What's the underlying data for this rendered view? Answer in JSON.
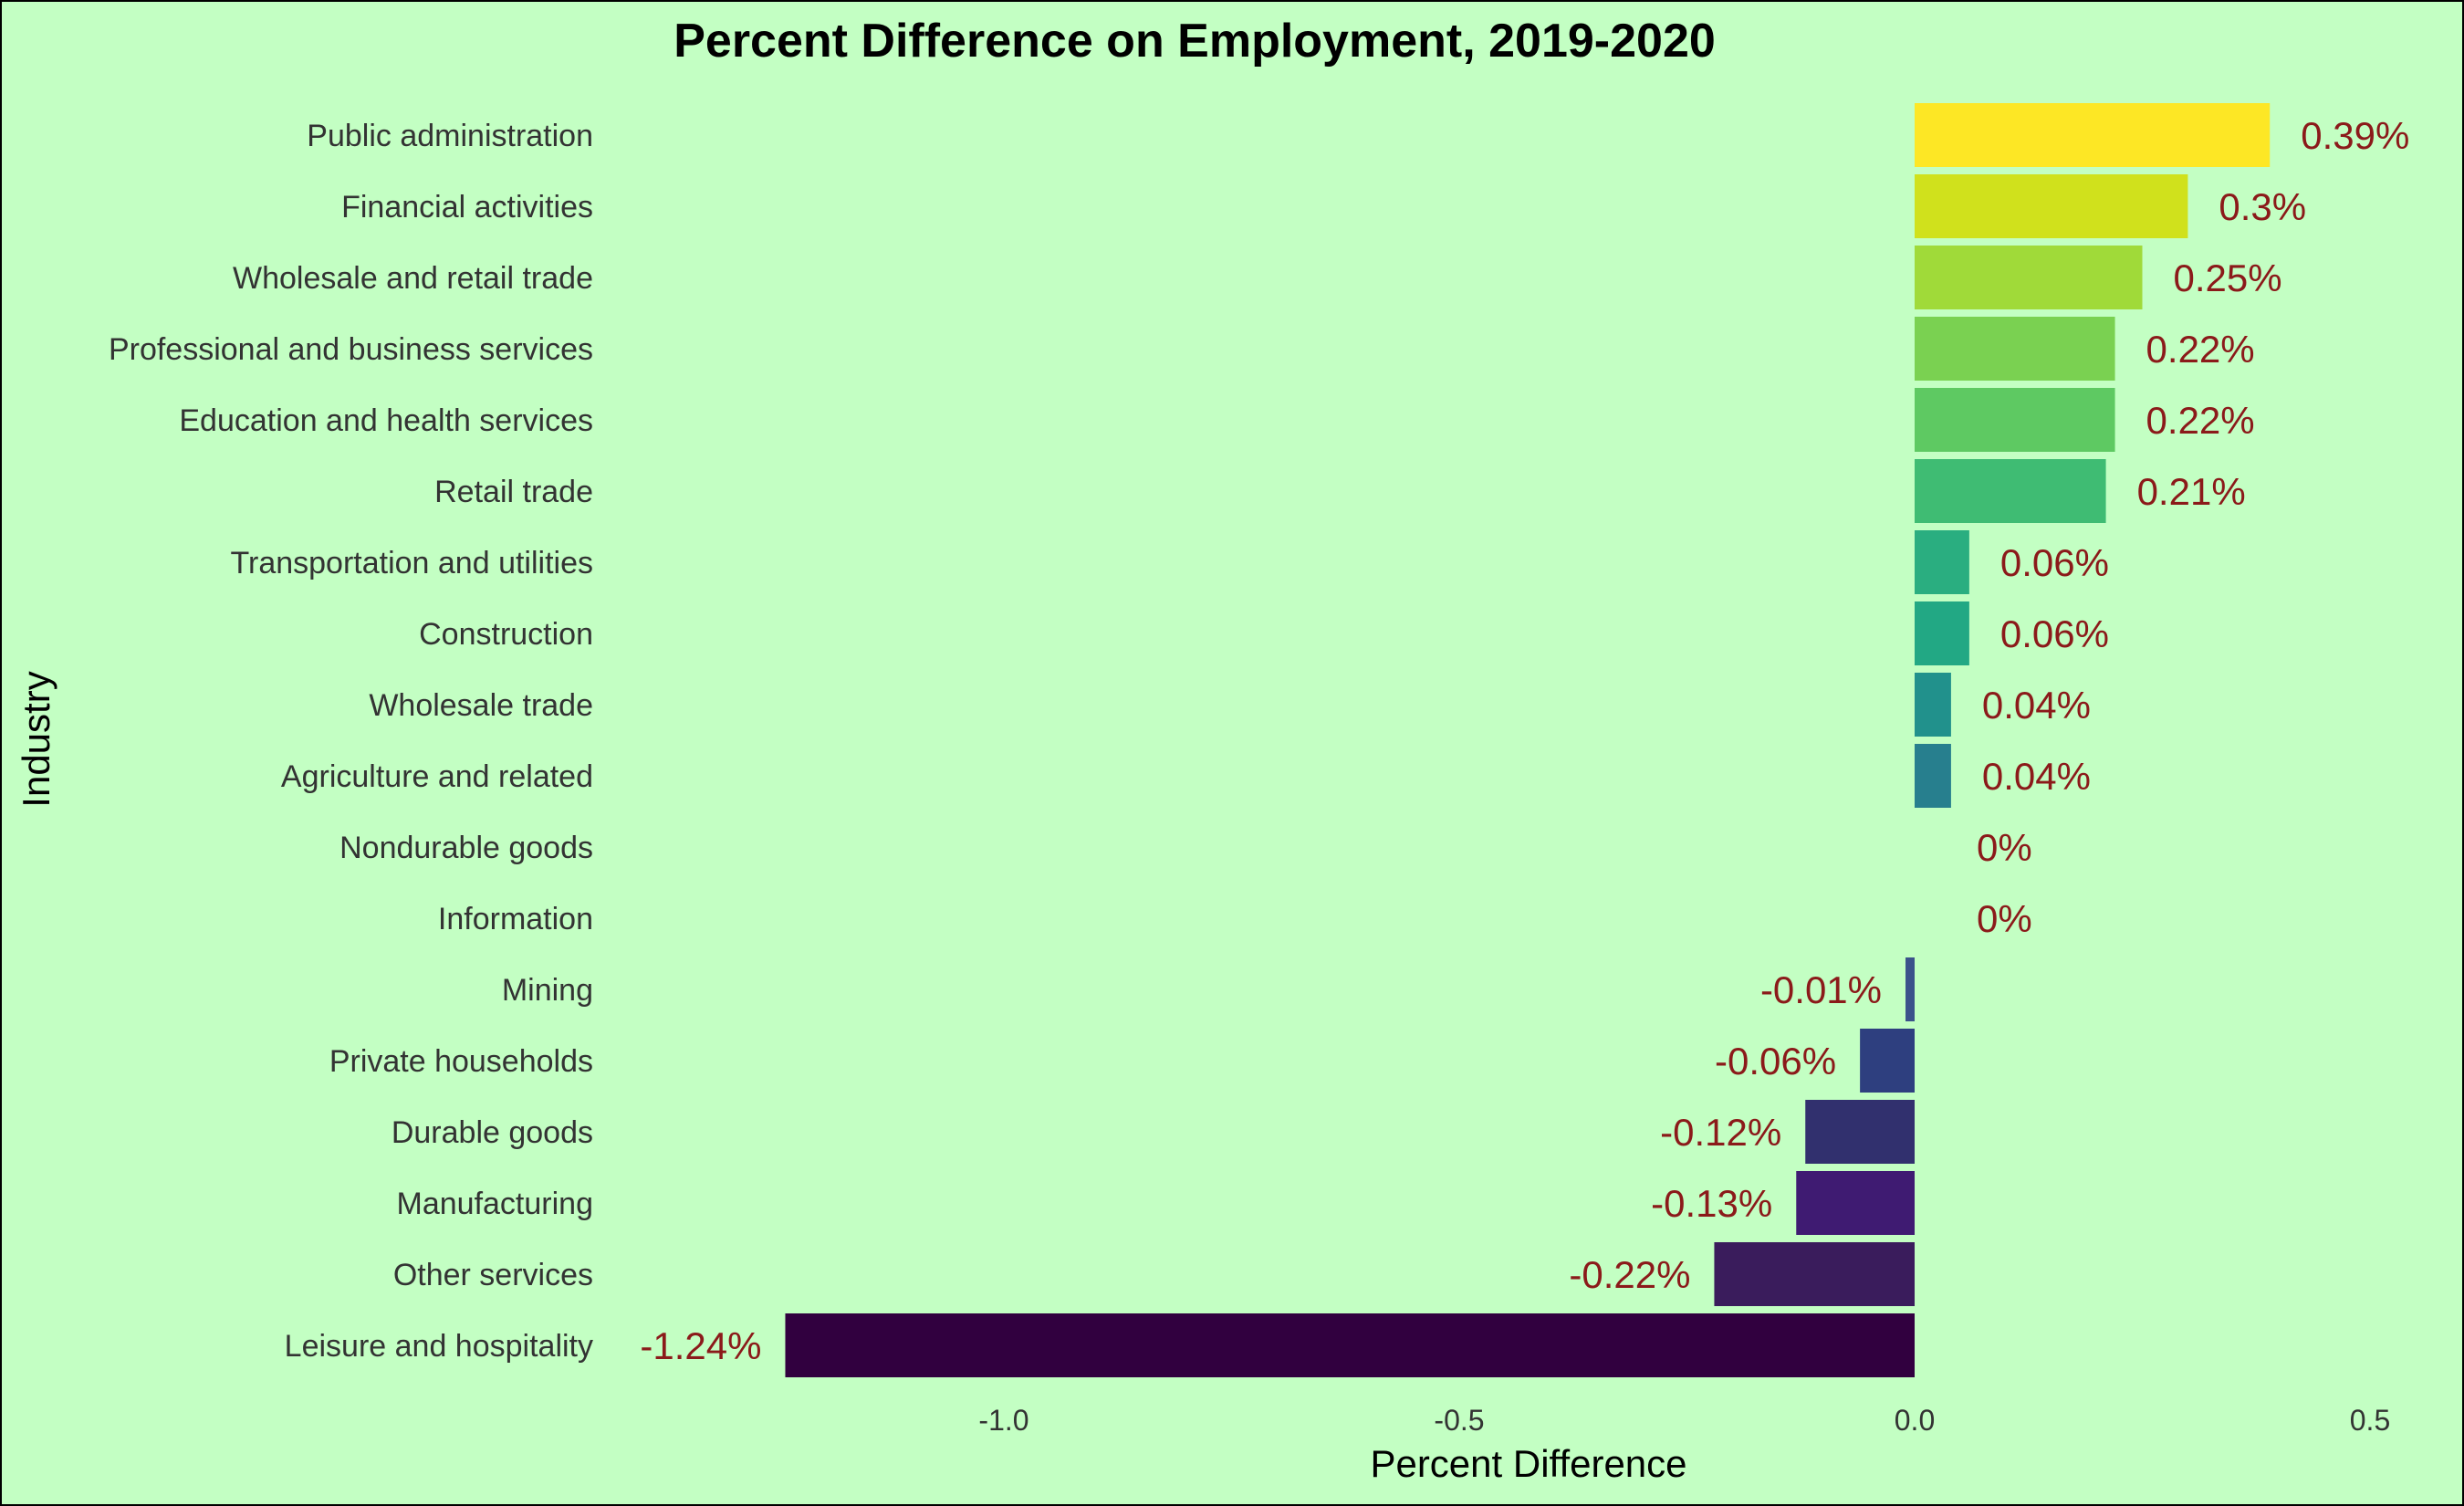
{
  "chart_data": {
    "type": "bar",
    "orientation": "horizontal",
    "title": "Percent Difference on Employment, 2019-2020",
    "xlabel": "Percent Difference",
    "ylabel": "Industry",
    "xlim": [
      -1.24,
      0.5
    ],
    "xticks": [
      -1.0,
      -0.5,
      0.0,
      0.5
    ],
    "xtick_labels": [
      "-1.0",
      "-0.5",
      "0.0",
      "0.5"
    ],
    "grid": false,
    "legend": "none",
    "categories": [
      "Public administration",
      "Financial activities",
      "Wholesale and retail trade",
      "Professional and business services",
      "Education and health services",
      "Retail trade",
      "Transportation and utilities",
      "Construction",
      "Wholesale trade",
      "Agriculture and related",
      "Nondurable goods",
      "Information",
      "Mining",
      "Private households",
      "Durable goods",
      "Manufacturing",
      "Other services",
      "Leisure and hospitality"
    ],
    "values": [
      0.39,
      0.3,
      0.25,
      0.22,
      0.22,
      0.21,
      0.06,
      0.06,
      0.04,
      0.04,
      0,
      0,
      -0.01,
      -0.06,
      -0.12,
      -0.13,
      -0.22,
      -1.24
    ],
    "data_labels": [
      "0.39%",
      "0.3%",
      "0.25%",
      "0.22%",
      "0.22%",
      "0.21%",
      "0.06%",
      "0.06%",
      "0.04%",
      "0.04%",
      "0%",
      "0%",
      "-0.01%",
      "-0.06%",
      "-0.12%",
      "-0.13%",
      "-0.22%",
      "-1.24%"
    ],
    "colors": [
      "#fde725",
      "#d0e11c",
      "#a0da39",
      "#7ad151",
      "#5ec962",
      "#3fbc73",
      "#2aae80",
      "#22a884",
      "#21918c",
      "#277f8e",
      "#2d708e",
      "#35608d",
      "#3b528b",
      "#2e3f7f",
      "#31306e",
      "#3f1b72",
      "#3a1c5c",
      "#31003f"
    ],
    "colors_note_": null,
    "label_color": "#8b1a1a",
    "background": "#c3ffc3"
  }
}
